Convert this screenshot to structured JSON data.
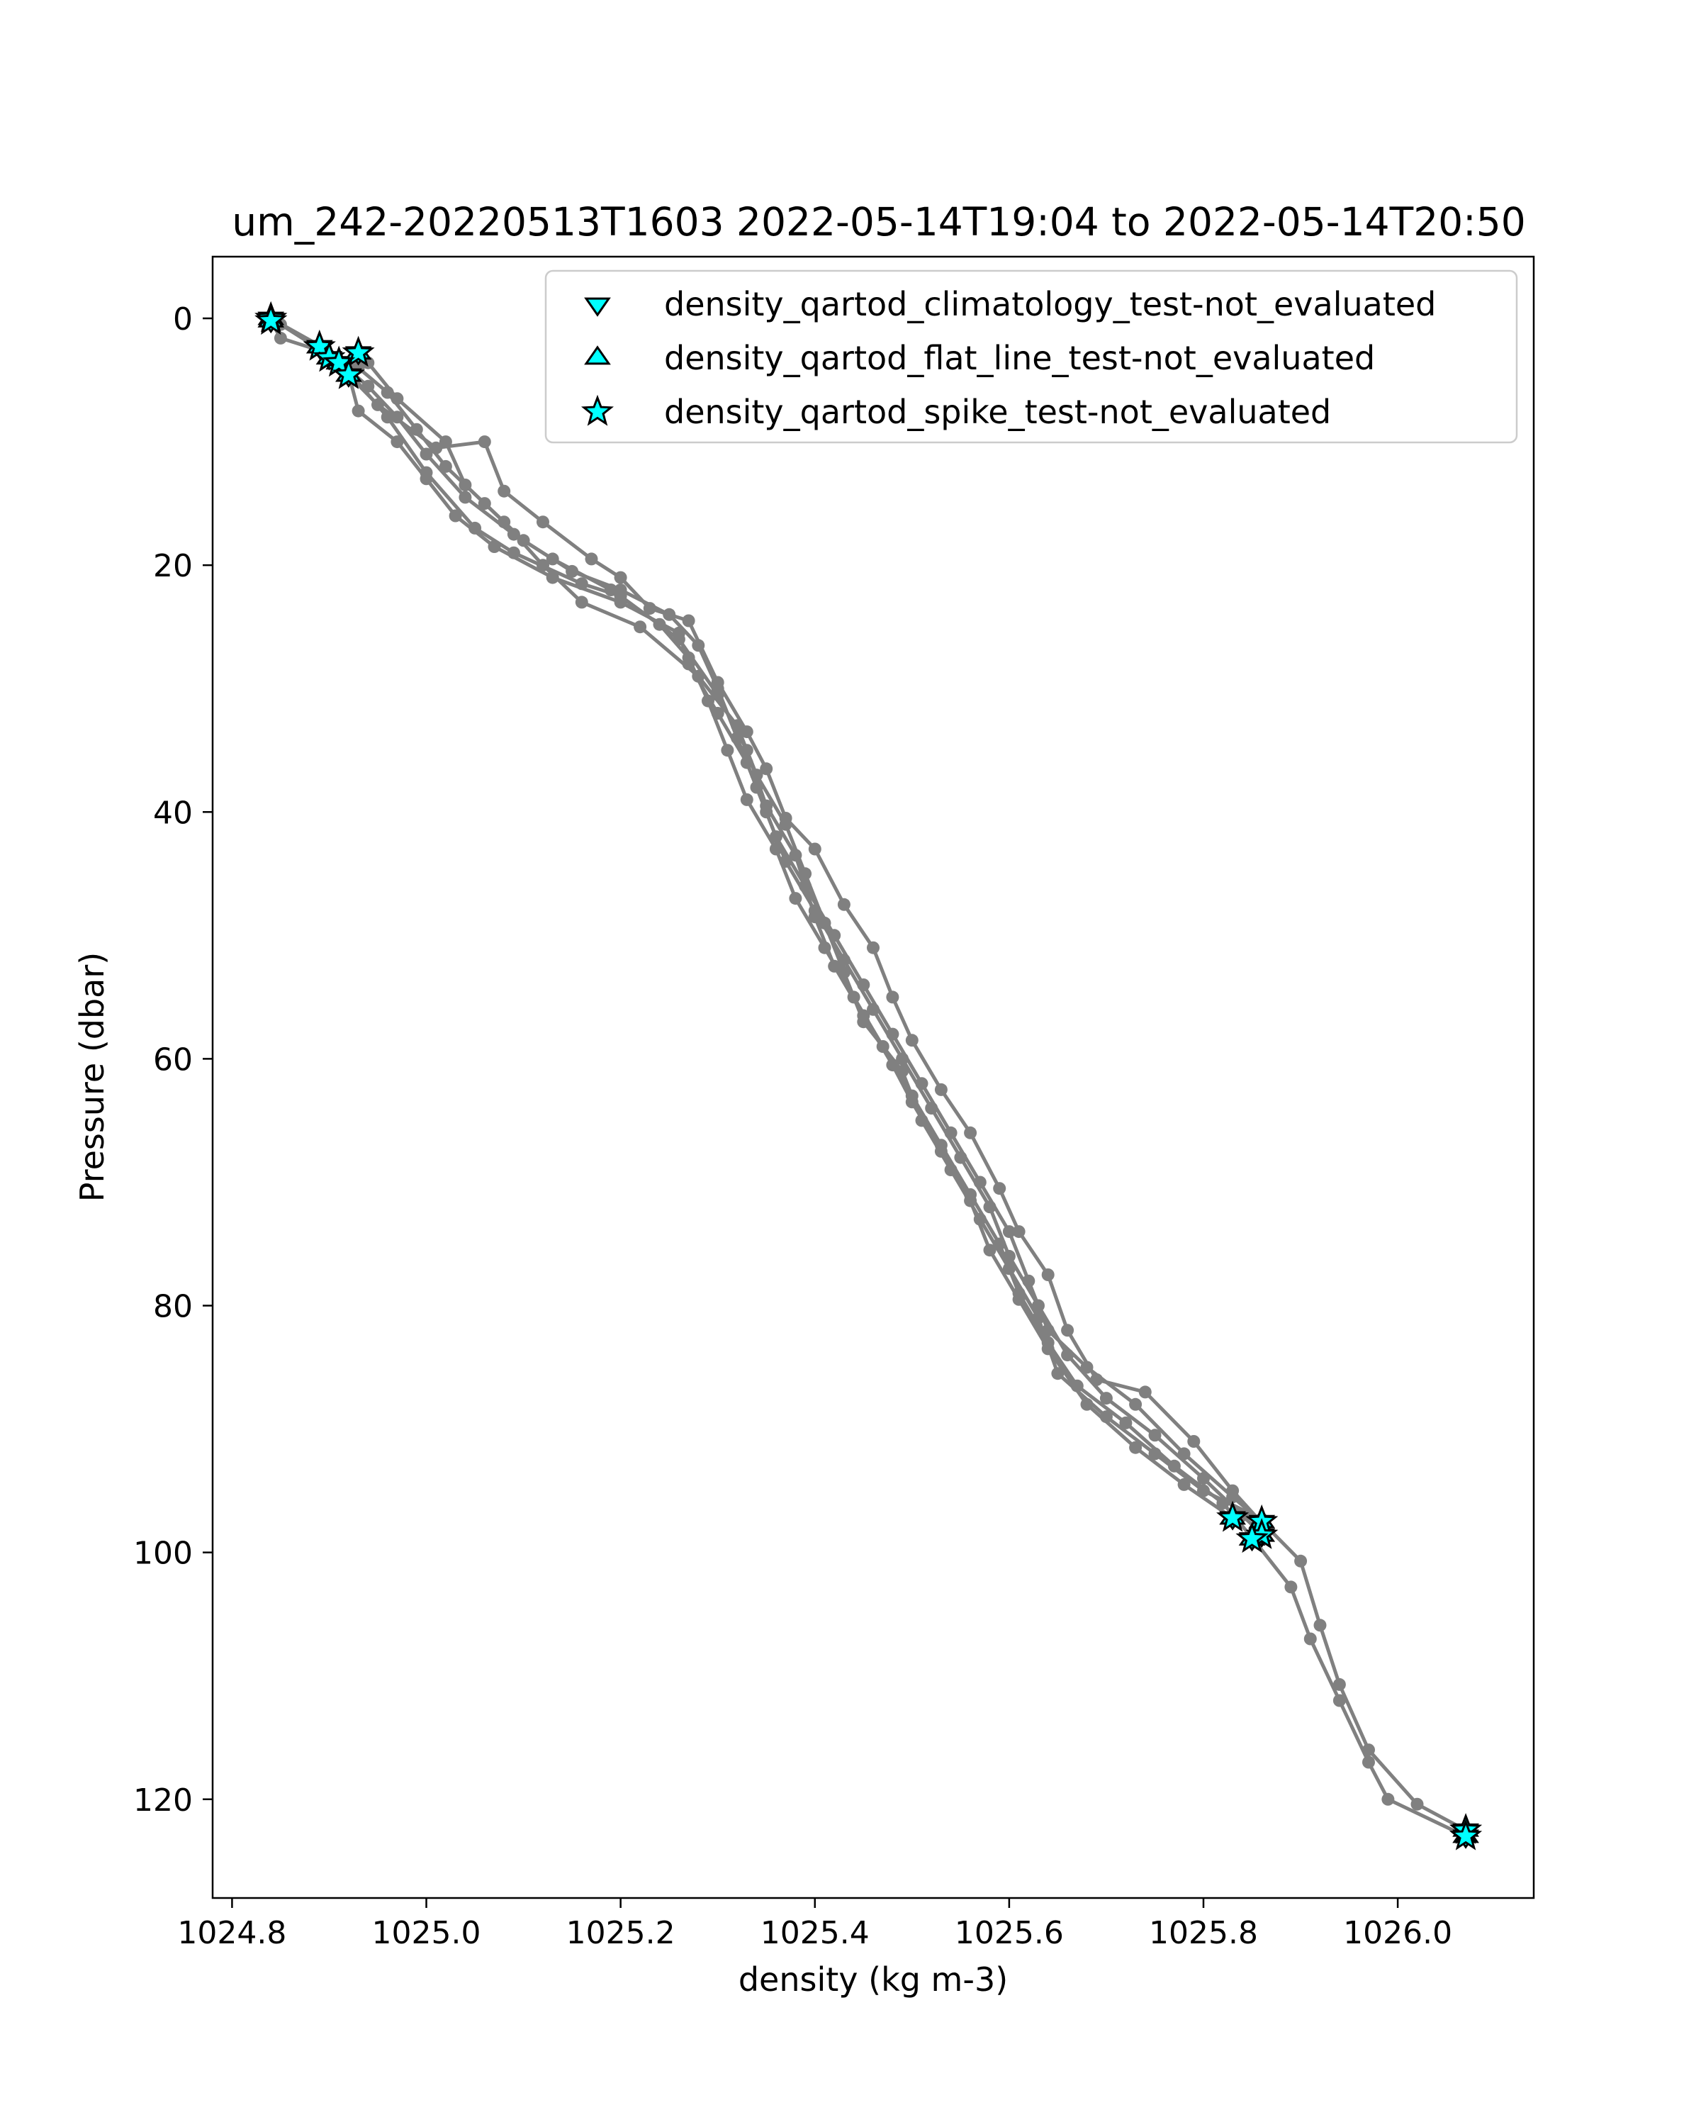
{
  "chart_data": {
    "type": "line",
    "title": "um_242-20220513T1603 2022-05-14T19:04 to 2022-05-14T20:50",
    "xlabel": "density (kg m-3)",
    "ylabel": "Pressure (dbar)",
    "xlim": [
      1024.78,
      1026.14
    ],
    "ylim": [
      128,
      -5
    ],
    "y_inverted": true,
    "x_ticks": [
      "1024.8",
      "1025.0",
      "1025.2",
      "1025.4",
      "1025.6",
      "1025.8",
      "1026.0"
    ],
    "y_ticks": [
      "0",
      "20",
      "40",
      "60",
      "80",
      "100",
      "120"
    ],
    "x_tick_values": [
      1024.8,
      1025.0,
      1025.2,
      1025.4,
      1025.6,
      1025.8,
      1026.0
    ],
    "y_tick_values": [
      0,
      20,
      40,
      60,
      80,
      100,
      120
    ],
    "grid": false,
    "legend_position": "top-right",
    "colors": {
      "profile": "#808080",
      "flag_fill": "#00ffff",
      "flag_edge": "#000000"
    },
    "legend": [
      {
        "label": "density_qartod_climatology_test-not_evaluated",
        "marker": "triangle-down"
      },
      {
        "label": "density_qartod_flat_line_test-not_evaluated",
        "marker": "triangle-up"
      },
      {
        "label": "density_qartod_spike_test-not_evaluated",
        "marker": "star"
      }
    ],
    "series": [
      {
        "marker": "circle",
        "color": "#808080",
        "points": [
          [
            1024.84,
            0.2
          ],
          [
            1024.85,
            1.6
          ],
          [
            1024.89,
            2.6
          ],
          [
            1024.93,
            4.0
          ],
          [
            1024.96,
            6.0
          ],
          [
            1024.99,
            9.0
          ],
          [
            1025.02,
            12.0
          ],
          [
            1025.06,
            15.0
          ],
          [
            1025.1,
            18.0
          ],
          [
            1025.15,
            20.5
          ],
          [
            1025.2,
            22.0
          ],
          [
            1025.25,
            24.0
          ],
          [
            1025.28,
            26.5
          ],
          [
            1025.3,
            30.0
          ],
          [
            1025.32,
            34.0
          ],
          [
            1025.34,
            38.0
          ],
          [
            1025.36,
            42.0
          ],
          [
            1025.39,
            46.0
          ],
          [
            1025.42,
            50.0
          ],
          [
            1025.45,
            54.0
          ],
          [
            1025.48,
            58.0
          ],
          [
            1025.51,
            62.0
          ],
          [
            1025.54,
            66.0
          ],
          [
            1025.57,
            70.0
          ],
          [
            1025.6,
            74.0
          ],
          [
            1025.62,
            78.0
          ],
          [
            1025.64,
            82.0
          ],
          [
            1025.68,
            85.0
          ],
          [
            1025.73,
            88.0
          ],
          [
            1025.78,
            92.0
          ],
          [
            1025.83,
            95.5
          ],
          [
            1025.86,
            97.5
          ],
          [
            1025.9,
            100.7
          ],
          [
            1025.92,
            105.9
          ],
          [
            1025.94,
            110.7
          ],
          [
            1025.97,
            116.0
          ],
          [
            1026.02,
            120.4
          ],
          [
            1026.07,
            122.5
          ]
        ]
      },
      {
        "marker": "circle",
        "color": "#808080",
        "points": [
          [
            1024.84,
            0.0
          ],
          [
            1024.89,
            2.2
          ],
          [
            1024.91,
            3.5
          ],
          [
            1024.94,
            5.5
          ],
          [
            1024.97,
            8.0
          ],
          [
            1025.0,
            11.0
          ],
          [
            1025.04,
            14.5
          ],
          [
            1025.09,
            17.5
          ],
          [
            1025.13,
            19.5
          ],
          [
            1025.19,
            22.0
          ],
          [
            1025.24,
            24.8
          ],
          [
            1025.27,
            27.5
          ],
          [
            1025.29,
            31.0
          ],
          [
            1025.31,
            35.0
          ],
          [
            1025.33,
            39.0
          ],
          [
            1025.36,
            43.0
          ],
          [
            1025.38,
            47.0
          ],
          [
            1025.41,
            51.0
          ],
          [
            1025.44,
            55.0
          ],
          [
            1025.47,
            59.0
          ],
          [
            1025.5,
            63.0
          ],
          [
            1025.53,
            67.0
          ],
          [
            1025.56,
            71.0
          ],
          [
            1025.59,
            75.0
          ],
          [
            1025.61,
            79.0
          ],
          [
            1025.64,
            83.0
          ],
          [
            1025.67,
            86.5
          ],
          [
            1025.72,
            89.5
          ],
          [
            1025.77,
            93.0
          ],
          [
            1025.82,
            96.0
          ],
          [
            1025.85,
            98.8
          ],
          [
            1025.89,
            102.8
          ],
          [
            1025.91,
            107.0
          ],
          [
            1025.94,
            112.0
          ],
          [
            1025.97,
            117.0
          ],
          [
            1025.99,
            120.0
          ],
          [
            1026.07,
            123.0
          ]
        ]
      },
      {
        "marker": "circle",
        "color": "#808080",
        "points": [
          [
            1024.85,
            0.5
          ],
          [
            1024.9,
            3.0
          ],
          [
            1024.92,
            4.5
          ],
          [
            1024.93,
            7.5
          ],
          [
            1024.97,
            10.0
          ],
          [
            1025.0,
            13.0
          ],
          [
            1025.03,
            16.0
          ],
          [
            1025.07,
            18.5
          ],
          [
            1025.13,
            21.0
          ],
          [
            1025.2,
            23.0
          ],
          [
            1025.26,
            25.5
          ],
          [
            1025.27,
            28.0
          ],
          [
            1025.3,
            32.0
          ],
          [
            1025.33,
            36.0
          ],
          [
            1025.35,
            40.0
          ],
          [
            1025.37,
            44.0
          ],
          [
            1025.4,
            48.0
          ],
          [
            1025.43,
            52.0
          ],
          [
            1025.46,
            56.0
          ],
          [
            1025.49,
            60.0
          ],
          [
            1025.52,
            64.0
          ],
          [
            1025.55,
            68.0
          ],
          [
            1025.58,
            72.0
          ],
          [
            1025.6,
            76.0
          ],
          [
            1025.63,
            80.0
          ],
          [
            1025.66,
            84.0
          ],
          [
            1025.7,
            87.5
          ],
          [
            1025.75,
            90.5
          ],
          [
            1025.8,
            94.0
          ],
          [
            1025.84,
            97.0
          ],
          [
            1025.86,
            98.5
          ]
        ]
      },
      {
        "marker": "circle",
        "color": "#808080",
        "points": [
          [
            1024.93,
            2.8
          ],
          [
            1024.94,
            3.6
          ],
          [
            1024.97,
            6.5
          ],
          [
            1025.02,
            10.0
          ],
          [
            1025.04,
            13.5
          ],
          [
            1025.08,
            16.5
          ],
          [
            1025.12,
            20.0
          ],
          [
            1025.16,
            23.0
          ],
          [
            1025.22,
            25.0
          ],
          [
            1025.28,
            29.0
          ],
          [
            1025.32,
            33.0
          ],
          [
            1025.34,
            37.0
          ],
          [
            1025.37,
            41.0
          ],
          [
            1025.39,
            45.0
          ],
          [
            1025.41,
            49.0
          ],
          [
            1025.43,
            53.0
          ],
          [
            1025.45,
            57.0
          ],
          [
            1025.49,
            61.0
          ],
          [
            1025.51,
            65.0
          ],
          [
            1025.54,
            69.0
          ],
          [
            1025.57,
            73.0
          ],
          [
            1025.6,
            77.0
          ],
          [
            1025.63,
            81.0
          ],
          [
            1025.65,
            85.5
          ],
          [
            1025.7,
            89.0
          ],
          [
            1025.75,
            92.0
          ],
          [
            1025.8,
            95.0
          ],
          [
            1025.86,
            97.3
          ]
        ]
      },
      {
        "marker": "circle",
        "color": "#808080",
        "points": [
          [
            1024.92,
            4.6
          ],
          [
            1024.95,
            7.0
          ],
          [
            1025.01,
            10.5
          ],
          [
            1025.06,
            10.0
          ],
          [
            1025.08,
            14.0
          ],
          [
            1025.12,
            16.5
          ],
          [
            1025.17,
            19.5
          ],
          [
            1025.2,
            21.0
          ],
          [
            1025.23,
            23.5
          ],
          [
            1025.27,
            24.5
          ],
          [
            1025.3,
            29.5
          ],
          [
            1025.33,
            33.5
          ],
          [
            1025.35,
            36.5
          ],
          [
            1025.37,
            40.5
          ],
          [
            1025.4,
            43.0
          ],
          [
            1025.43,
            47.5
          ],
          [
            1025.46,
            51.0
          ],
          [
            1025.48,
            55.0
          ],
          [
            1025.5,
            58.5
          ],
          [
            1025.53,
            62.5
          ],
          [
            1025.56,
            66.0
          ],
          [
            1025.59,
            70.5
          ],
          [
            1025.61,
            74.0
          ],
          [
            1025.64,
            77.5
          ],
          [
            1025.66,
            82.0
          ],
          [
            1025.69,
            86.0
          ],
          [
            1025.74,
            87.0
          ],
          [
            1025.79,
            91.0
          ],
          [
            1025.83,
            95.0
          ],
          [
            1025.86,
            97.6
          ]
        ]
      },
      {
        "marker": "circle",
        "color": "#808080",
        "points": [
          [
            1024.92,
            4.3
          ],
          [
            1024.96,
            8.0
          ],
          [
            1025.0,
            12.5
          ],
          [
            1025.05,
            17.0
          ],
          [
            1025.09,
            19.0
          ],
          [
            1025.16,
            21.5
          ],
          [
            1025.2,
            22.5
          ],
          [
            1025.26,
            26.0
          ],
          [
            1025.3,
            30.5
          ],
          [
            1025.33,
            35.0
          ],
          [
            1025.35,
            39.5
          ],
          [
            1025.38,
            43.5
          ],
          [
            1025.4,
            48.5
          ],
          [
            1025.42,
            52.5
          ],
          [
            1025.45,
            56.5
          ],
          [
            1025.48,
            60.5
          ],
          [
            1025.5,
            63.5
          ],
          [
            1025.53,
            67.5
          ],
          [
            1025.56,
            71.5
          ],
          [
            1025.58,
            75.5
          ],
          [
            1025.61,
            79.5
          ],
          [
            1025.64,
            83.5
          ],
          [
            1025.68,
            88.0
          ],
          [
            1025.73,
            91.5
          ],
          [
            1025.78,
            94.5
          ],
          [
            1025.83,
            97.2
          ]
        ]
      }
    ],
    "flags": {
      "climatology": [
        [
          1024.84,
          0.0
        ],
        [
          1024.84,
          0.2
        ],
        [
          1024.89,
          2.3
        ],
        [
          1024.9,
          3.2
        ],
        [
          1024.93,
          2.8
        ],
        [
          1024.91,
          3.6
        ],
        [
          1024.92,
          4.6
        ],
        [
          1025.83,
          97.2
        ],
        [
          1025.86,
          97.5
        ],
        [
          1025.86,
          98.6
        ],
        [
          1025.85,
          98.9
        ],
        [
          1026.07,
          122.5
        ],
        [
          1026.07,
          123.0
        ]
      ],
      "flat_line": [
        [
          1024.84,
          0.0
        ],
        [
          1024.84,
          0.2
        ],
        [
          1024.89,
          2.3
        ],
        [
          1024.9,
          3.2
        ],
        [
          1024.93,
          2.8
        ],
        [
          1024.91,
          3.6
        ],
        [
          1024.92,
          4.6
        ],
        [
          1025.83,
          97.2
        ],
        [
          1025.86,
          97.5
        ],
        [
          1025.86,
          98.6
        ],
        [
          1025.85,
          98.9
        ],
        [
          1026.07,
          122.5
        ],
        [
          1026.07,
          123.0
        ]
      ],
      "spike": [
        [
          1024.84,
          0.0
        ],
        [
          1024.84,
          0.2
        ],
        [
          1024.89,
          2.3
        ],
        [
          1024.9,
          3.2
        ],
        [
          1024.93,
          2.8
        ],
        [
          1024.91,
          3.6
        ],
        [
          1024.92,
          4.6
        ],
        [
          1025.83,
          97.2
        ],
        [
          1025.86,
          97.5
        ],
        [
          1025.86,
          98.6
        ],
        [
          1025.85,
          98.9
        ],
        [
          1026.07,
          122.5
        ],
        [
          1026.07,
          123.0
        ]
      ]
    }
  }
}
